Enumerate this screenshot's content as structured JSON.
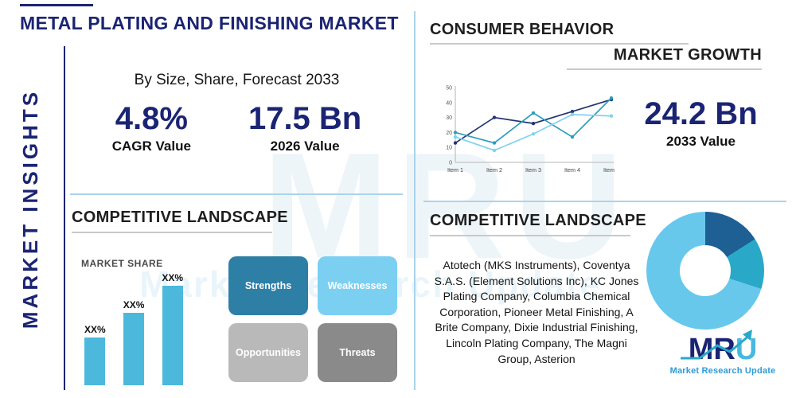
{
  "header": {
    "title": "METAL PLATING AND FINISHING MARKET",
    "subtitle": "By Size, Share, Forecast 2033"
  },
  "sidebar": {
    "label": "MARKET INSIGHTS"
  },
  "stats": {
    "cagr": {
      "value": "4.8%",
      "label": "CAGR Value"
    },
    "y2026": {
      "value": "17.5 Bn",
      "label": "2026 Value"
    },
    "y2033": {
      "value": "24.2 Bn",
      "label": "2033 Value"
    }
  },
  "sections": {
    "consumer_behavior": "CONSUMER BEHAVIOR",
    "market_growth": "MARKET GROWTH",
    "competitive_landscape_left": "COMPETITIVE LANDSCAPE",
    "competitive_landscape_right": "COMPETITIVE LANDSCAPE"
  },
  "swot": {
    "tiles": [
      {
        "label": "Strengths",
        "color": "#2e7fa6"
      },
      {
        "label": "Weaknesses",
        "color": "#7bd0f2"
      },
      {
        "label": "Opportunities",
        "color": "#b9b9b9"
      },
      {
        "label": "Threats",
        "color": "#8a8a8a"
      }
    ]
  },
  "companies": {
    "text": "Atotech (MKS Instruments), Coventya S.A.S. (Element Solutions Inc), KC Jones Plating Company, Columbia Chemical Corporation, Pioneer Metal Finishing, A Brite Company, Dixie Industrial Finishing, Lincoln Plating Company, The Magni Group, Asterion"
  },
  "watermark": {
    "text": "MRU",
    "subtext": "Market Research Update"
  },
  "logo": {
    "mr": "MR",
    "u": "U",
    "caption": "Market Research Update"
  },
  "colors": {
    "navy": "#1b2473",
    "light_blue": "#4cb9dc",
    "divider": "#aad4ea",
    "underline": "#c9c9c9"
  },
  "chart_data": [
    {
      "id": "market-growth-line",
      "type": "line",
      "title": "MARKET GROWTH",
      "x": [
        "Item 1",
        "Item 2",
        "Item 3",
        "Item 4",
        "Item 5"
      ],
      "ylim": [
        0,
        50
      ],
      "yticks": [
        0,
        10,
        20,
        30,
        40,
        50
      ],
      "grid": false,
      "legend": "none",
      "series": [
        {
          "name": "series-navy",
          "color": "#24356e",
          "values": [
            13,
            30,
            26,
            34,
            42
          ]
        },
        {
          "name": "series-teal",
          "color": "#2d9dbd",
          "values": [
            20,
            13,
            33,
            17,
            43
          ]
        },
        {
          "name": "series-light-blue",
          "color": "#7fd2f0",
          "values": [
            17,
            8,
            19,
            32,
            31
          ]
        }
      ]
    },
    {
      "id": "market-share-bars",
      "type": "bar",
      "title": "MARKET SHARE",
      "categories": [
        "XX%",
        "XX%",
        "XX%"
      ],
      "values": [
        28,
        42,
        58
      ],
      "ylim": [
        0,
        65
      ],
      "bar_color": "#4cb9dc"
    },
    {
      "id": "segment-donut",
      "type": "pie",
      "donut": true,
      "slices": [
        {
          "name": "segment-1",
          "value": 16,
          "color": "#1e5f94"
        },
        {
          "name": "segment-2",
          "value": 14,
          "color": "#2aa8c8"
        },
        {
          "name": "segment-3",
          "value": 70,
          "color": "#68c8ec"
        }
      ]
    }
  ]
}
